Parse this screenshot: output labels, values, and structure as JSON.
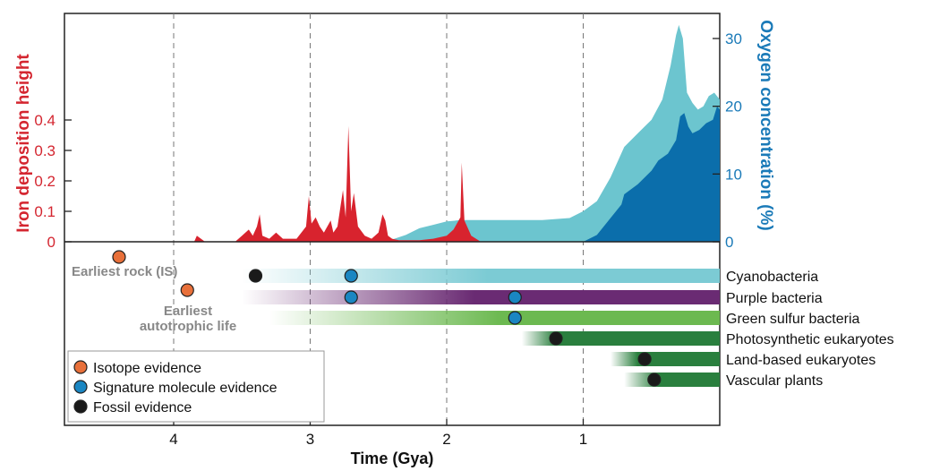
{
  "colors": {
    "iron": "#d8232e",
    "oxygen_light": "#6cc5cf",
    "oxygen_dark": "#0b6eab",
    "isotope": "#e8703a",
    "signature": "#1a86c2",
    "fossil": "#1a1a1a",
    "cyan_bar": "#7ccbd4",
    "purple_bar": "#6a2b73",
    "green_light_bar": "#6cb950",
    "green_dark_bar": "#2a7f3e"
  },
  "chart_data": {
    "type": "area",
    "xlabel": "Time (Gya)",
    "x_ticks": [
      4,
      3,
      2,
      1
    ],
    "xlim": [
      4.8,
      0
    ],
    "y_left": {
      "label": "Iron deposition height",
      "ticks": [
        "0",
        "0.1",
        "0.2",
        "0.3",
        "0.4"
      ],
      "tick_values": [
        0,
        0.1,
        0.2,
        0.3,
        0.4
      ],
      "range": [
        0,
        0.6
      ]
    },
    "y_right": {
      "label": "Oxygen concentration (%)",
      "ticks": [
        "0",
        "10",
        "20",
        "30"
      ],
      "tick_values": [
        0,
        10,
        20,
        30
      ],
      "range": [
        0,
        34
      ]
    },
    "iron_deposition": [
      [
        3.85,
        0
      ],
      [
        3.83,
        0.02
      ],
      [
        3.8,
        0.01
      ],
      [
        3.77,
        0
      ],
      [
        3.55,
        0
      ],
      [
        3.5,
        0.02
      ],
      [
        3.45,
        0.04
      ],
      [
        3.42,
        0.02
      ],
      [
        3.39,
        0.05
      ],
      [
        3.37,
        0.09
      ],
      [
        3.35,
        0.02
      ],
      [
        3.3,
        0.01
      ],
      [
        3.25,
        0.03
      ],
      [
        3.2,
        0.01
      ],
      [
        3.1,
        0.01
      ],
      [
        3.03,
        0.05
      ],
      [
        3.01,
        0.15
      ],
      [
        2.99,
        0.06
      ],
      [
        2.96,
        0.08
      ],
      [
        2.93,
        0.05
      ],
      [
        2.9,
        0.03
      ],
      [
        2.85,
        0.07
      ],
      [
        2.83,
        0.03
      ],
      [
        2.8,
        0.05
      ],
      [
        2.76,
        0.17
      ],
      [
        2.74,
        0.08
      ],
      [
        2.72,
        0.38
      ],
      [
        2.7,
        0.1
      ],
      [
        2.68,
        0.16
      ],
      [
        2.65,
        0.05
      ],
      [
        2.6,
        0.02
      ],
      [
        2.55,
        0.01
      ],
      [
        2.5,
        0.03
      ],
      [
        2.47,
        0.09
      ],
      [
        2.45,
        0.07
      ],
      [
        2.43,
        0.02
      ],
      [
        2.4,
        0.01
      ],
      [
        2.35,
        0.005
      ],
      [
        2.2,
        0.005
      ],
      [
        2.1,
        0.01
      ],
      [
        2.0,
        0.02
      ],
      [
        1.95,
        0.04
      ],
      [
        1.9,
        0.08
      ],
      [
        1.89,
        0.26
      ],
      [
        1.87,
        0.07
      ],
      [
        1.82,
        0.02
      ],
      [
        1.75,
        0
      ]
    ],
    "oxygen_total": [
      [
        2.45,
        0
      ],
      [
        2.3,
        1.0
      ],
      [
        2.2,
        2.0
      ],
      [
        2.1,
        2.5
      ],
      [
        2.0,
        3.0
      ],
      [
        1.9,
        3.2
      ],
      [
        1.6,
        3.2
      ],
      [
        1.3,
        3.2
      ],
      [
        1.1,
        3.5
      ],
      [
        1.0,
        4.5
      ],
      [
        0.9,
        6.0
      ],
      [
        0.8,
        9.5
      ],
      [
        0.7,
        14.0
      ],
      [
        0.6,
        16.0
      ],
      [
        0.5,
        18.0
      ],
      [
        0.42,
        21.0
      ],
      [
        0.36,
        26.0
      ],
      [
        0.32,
        30.5
      ],
      [
        0.3,
        32.0
      ],
      [
        0.27,
        30.0
      ],
      [
        0.24,
        22.0
      ],
      [
        0.2,
        20.5
      ],
      [
        0.16,
        19.5
      ],
      [
        0.12,
        20.0
      ],
      [
        0.08,
        21.5
      ],
      [
        0.04,
        22.0
      ],
      [
        0.0,
        21.0
      ]
    ],
    "oxygen_deep": [
      [
        1.0,
        0
      ],
      [
        0.9,
        1.0
      ],
      [
        0.8,
        3.5
      ],
      [
        0.72,
        5.5
      ],
      [
        0.7,
        7.0
      ],
      [
        0.6,
        8.5
      ],
      [
        0.5,
        10.5
      ],
      [
        0.45,
        12.0
      ],
      [
        0.38,
        13.0
      ],
      [
        0.32,
        15.0
      ],
      [
        0.29,
        18.5
      ],
      [
        0.26,
        19.0
      ],
      [
        0.23,
        17.0
      ],
      [
        0.2,
        16.0
      ],
      [
        0.15,
        16.5
      ],
      [
        0.1,
        17.5
      ],
      [
        0.05,
        18.0
      ],
      [
        0.02,
        20.0
      ],
      [
        0.0,
        19.5
      ]
    ],
    "lineages": [
      {
        "name": "Cyanobacteria",
        "start": 3.5,
        "fade_end": 1.7,
        "color_key": "cyan_bar"
      },
      {
        "name": "Purple bacteria",
        "start": 3.5,
        "fade_end": 1.8,
        "color_key": "purple_bar"
      },
      {
        "name": "Green sulfur bacteria",
        "start": 3.3,
        "fade_end": 1.6,
        "color_key": "green_light_bar"
      },
      {
        "name": "Photosynthetic eukaryotes",
        "start": 1.45,
        "fade_end": 1.2,
        "color_key": "green_dark_bar"
      },
      {
        "name": "Land-based eukaryotes",
        "start": 0.8,
        "fade_end": 0.6,
        "color_key": "green_dark_bar"
      },
      {
        "name": "Vascular plants",
        "start": 0.7,
        "fade_end": 0.45,
        "color_key": "green_dark_bar"
      }
    ],
    "evidence_points": [
      {
        "type": "isotope",
        "x": 4.4,
        "row": -1
      },
      {
        "type": "isotope",
        "x": 3.9,
        "row": 0.5
      },
      {
        "type": "fossil",
        "x": 3.4,
        "row": 0
      },
      {
        "type": "signature",
        "x": 2.7,
        "row": 0
      },
      {
        "type": "signature",
        "x": 2.7,
        "row": 1
      },
      {
        "type": "signature",
        "x": 1.5,
        "row": 1
      },
      {
        "type": "signature",
        "x": 1.5,
        "row": 2
      },
      {
        "type": "fossil",
        "x": 1.2,
        "row": 3
      },
      {
        "type": "fossil",
        "x": 0.55,
        "row": 4
      },
      {
        "type": "fossil",
        "x": 0.48,
        "row": 5
      }
    ],
    "annotations": {
      "earliest_rock": "Earliest rock (IS)",
      "earliest_life_line1": "Earliest",
      "earliest_life_line2": "autotrophic life"
    },
    "legend": [
      {
        "label": "Isotope evidence",
        "type": "isotope"
      },
      {
        "label": "Signature molecule evidence",
        "type": "signature"
      },
      {
        "label": "Fossil evidence",
        "type": "fossil"
      }
    ],
    "grid": "dashed vertical at x ticks"
  }
}
